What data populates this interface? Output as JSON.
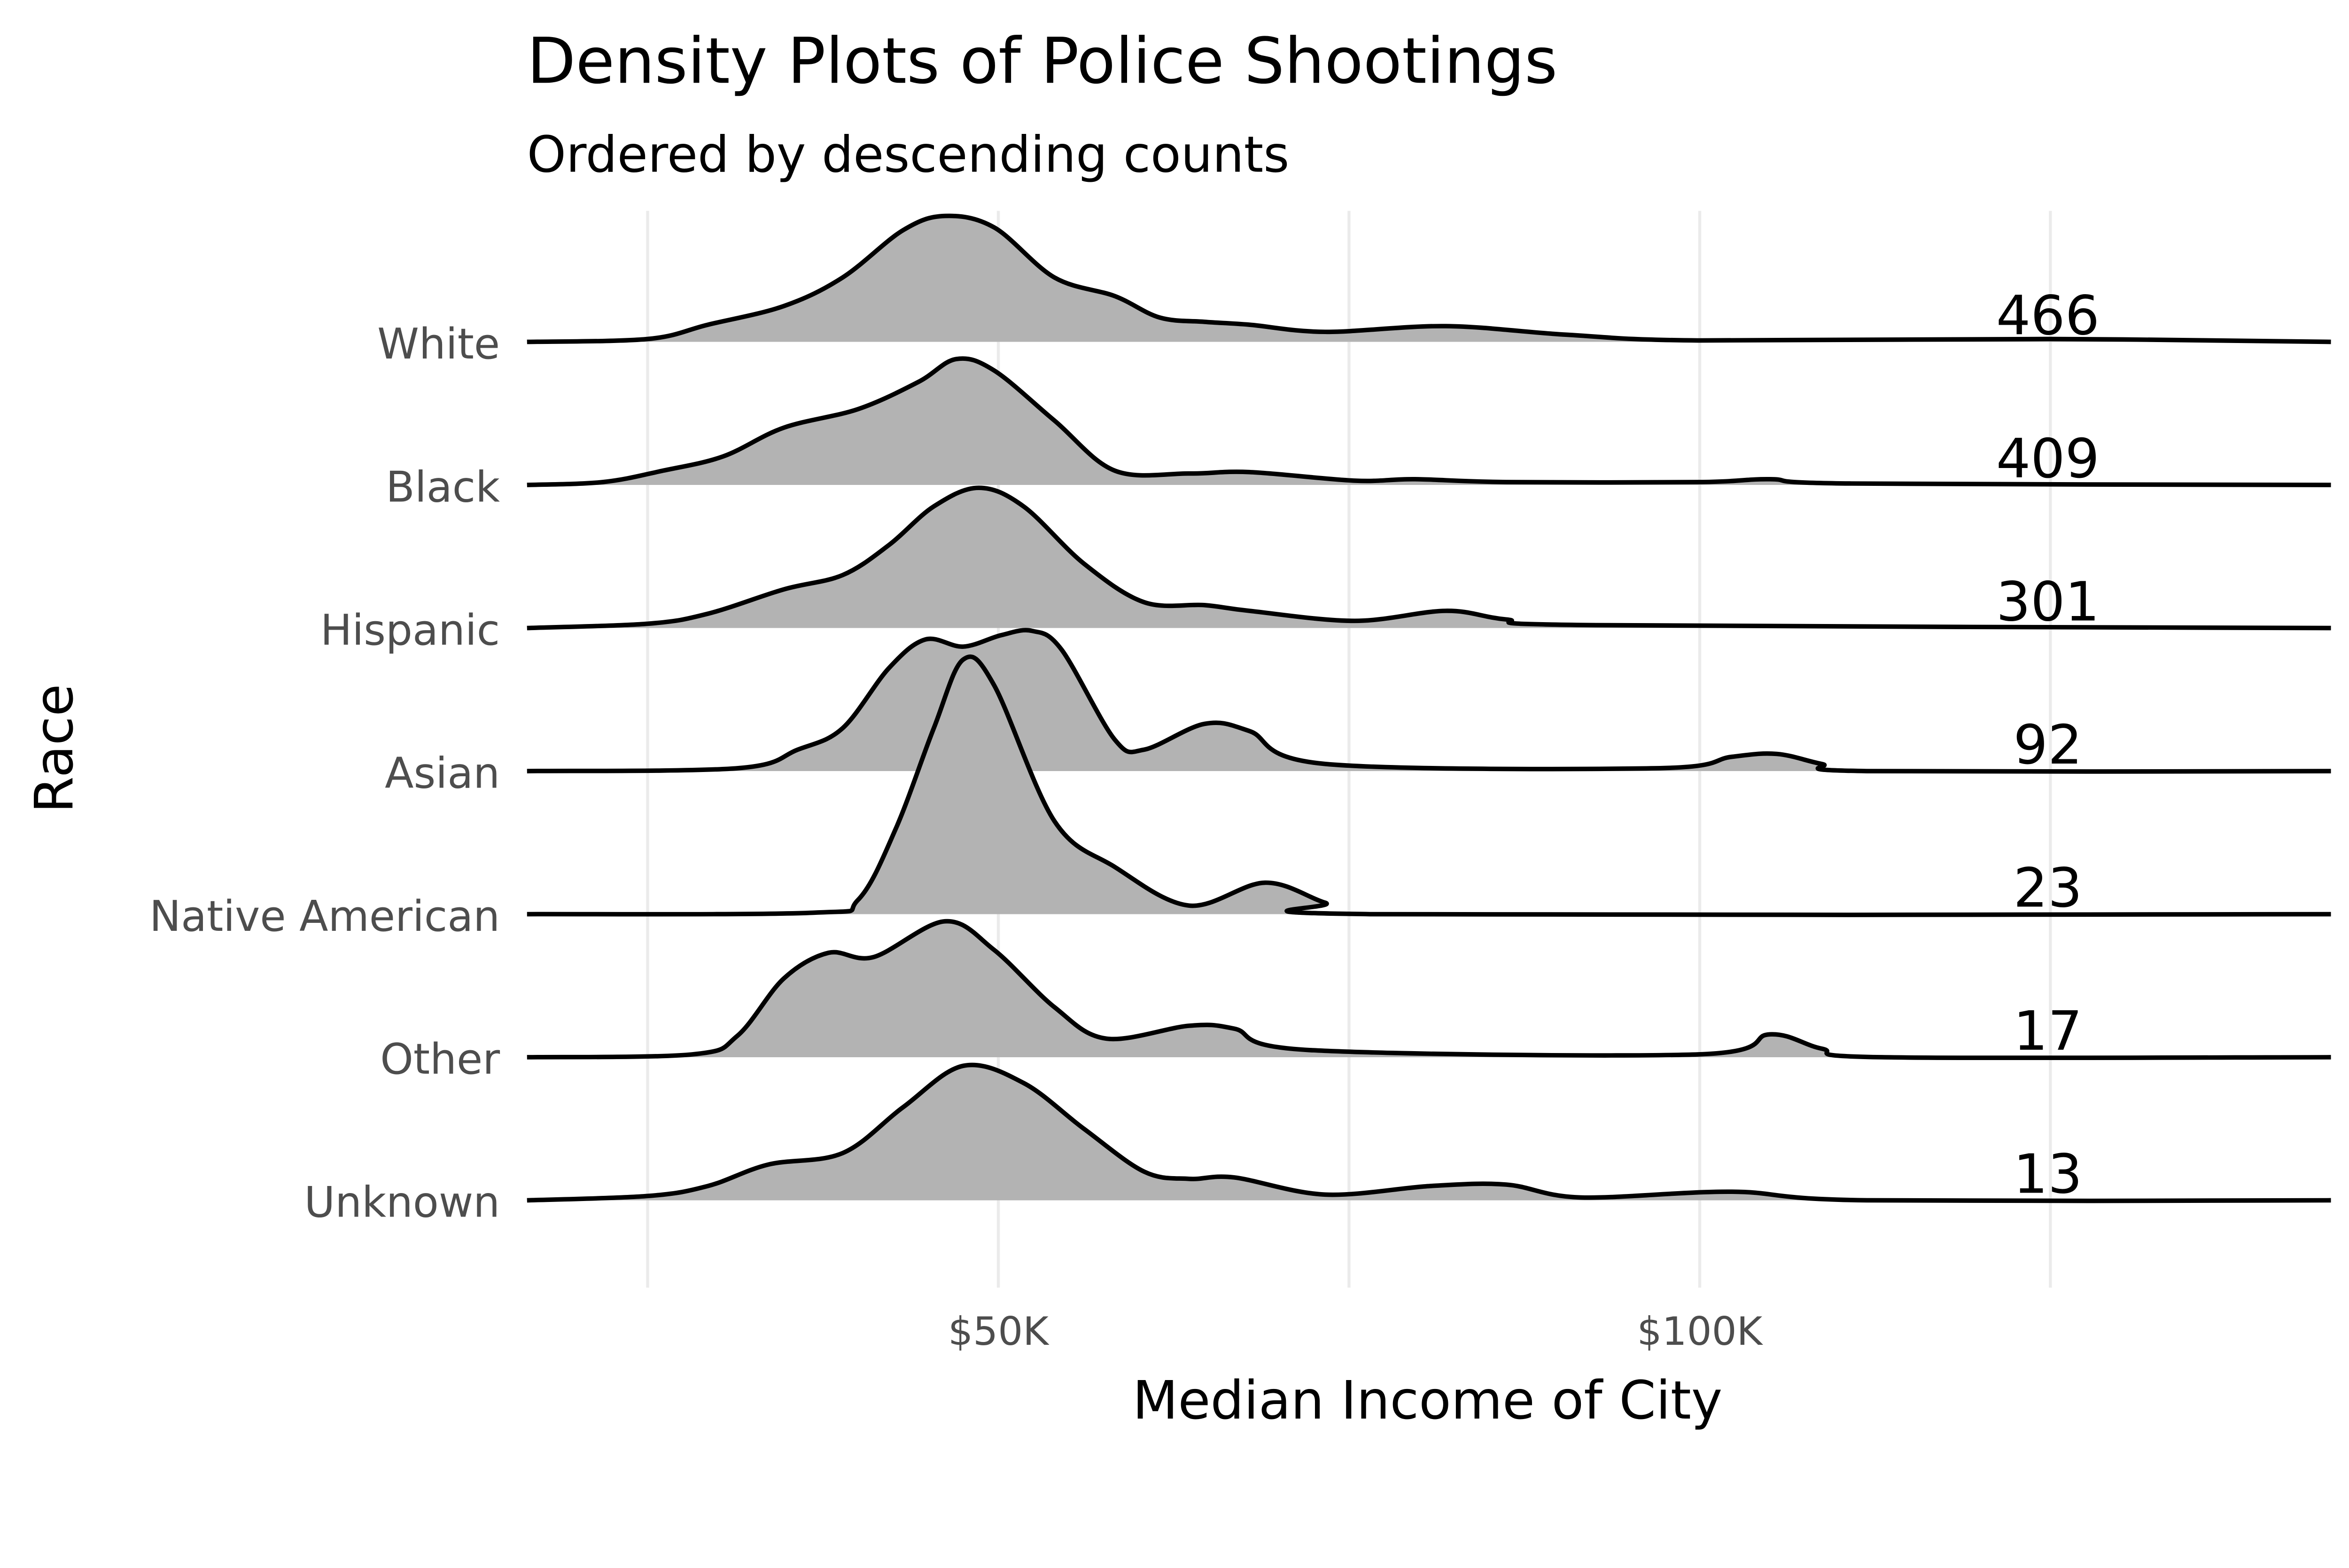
{
  "chart_data": {
    "type": "ridgeline-density",
    "title": "Density Plots of Police Shootings",
    "subtitle": "Ordered by descending counts",
    "xlabel": "Median Income of City",
    "ylabel": "Race",
    "x_unit": "thousands USD",
    "xlim": [
      16.4,
      145
    ],
    "x_ticks": [
      {
        "value": 50,
        "label": "$50K"
      },
      {
        "value": 100,
        "label": "$100K"
      }
    ],
    "x_minor_grid": [
      25,
      75,
      125
    ],
    "fill_color": "#b3b3b3",
    "line_color": "#000000",
    "series": [
      {
        "name": "White",
        "count": "466",
        "points": [
          [
            16.4,
            0
          ],
          [
            25,
            0.02
          ],
          [
            29.3,
            0.12
          ],
          [
            34.7,
            0.25
          ],
          [
            38.9,
            0.45
          ],
          [
            43.2,
            0.78
          ],
          [
            46.2,
            0.88
          ],
          [
            49.7,
            0.8
          ],
          [
            54,
            0.45
          ],
          [
            58.3,
            0.32
          ],
          [
            61.5,
            0.17
          ],
          [
            64.7,
            0.14
          ],
          [
            67.9,
            0.12
          ],
          [
            73.3,
            0.07
          ],
          [
            81.9,
            0.11
          ],
          [
            90.5,
            0.05
          ],
          [
            99.9,
            0.01
          ],
          [
            124.8,
            0.02
          ],
          [
            145,
            0
          ]
        ]
      },
      {
        "name": "Black",
        "count": "409",
        "points": [
          [
            16.4,
            0
          ],
          [
            21.8,
            0.02
          ],
          [
            26.1,
            0.1
          ],
          [
            30.4,
            0.2
          ],
          [
            34.7,
            0.4
          ],
          [
            40,
            0.53
          ],
          [
            44.3,
            0.72
          ],
          [
            47,
            0.88
          ],
          [
            49.7,
            0.8
          ],
          [
            54,
            0.45
          ],
          [
            58.3,
            0.1
          ],
          [
            63.6,
            0.08
          ],
          [
            67.9,
            0.09
          ],
          [
            75.4,
            0.03
          ],
          [
            79.7,
            0.04
          ],
          [
            86.2,
            0.02
          ],
          [
            99.9,
            0.02
          ],
          [
            105,
            0.04
          ],
          [
            110.8,
            0.01
          ],
          [
            145,
            0
          ]
        ]
      },
      {
        "name": "Hispanic",
        "count": "301",
        "points": [
          [
            16.4,
            0
          ],
          [
            25,
            0.03
          ],
          [
            29.3,
            0.1
          ],
          [
            34.7,
            0.27
          ],
          [
            38.9,
            0.37
          ],
          [
            42.2,
            0.58
          ],
          [
            45.4,
            0.85
          ],
          [
            48.6,
            0.98
          ],
          [
            51.8,
            0.85
          ],
          [
            56.1,
            0.45
          ],
          [
            60.4,
            0.18
          ],
          [
            64.7,
            0.16
          ],
          [
            67.9,
            0.12
          ],
          [
            75.4,
            0.05
          ],
          [
            81.9,
            0.12
          ],
          [
            86.2,
            0.06
          ],
          [
            92.6,
            0.02
          ],
          [
            145,
            0
          ]
        ]
      },
      {
        "name": "Asian",
        "count": "92",
        "points": [
          [
            16.4,
            0
          ],
          [
            31.4,
            0.02
          ],
          [
            35.7,
            0.15
          ],
          [
            38.9,
            0.3
          ],
          [
            42.2,
            0.72
          ],
          [
            44.8,
            0.92
          ],
          [
            47.5,
            0.87
          ],
          [
            50.2,
            0.95
          ],
          [
            52.4,
            0.98
          ],
          [
            54.5,
            0.85
          ],
          [
            58.3,
            0.22
          ],
          [
            60.4,
            0.15
          ],
          [
            64.7,
            0.33
          ],
          [
            67.9,
            0.28
          ],
          [
            73.3,
            0.05
          ],
          [
            96.9,
            0.02
          ],
          [
            102.3,
            0.1
          ],
          [
            105.5,
            0.12
          ],
          [
            108.7,
            0.05
          ],
          [
            111.9,
            0
          ],
          [
            145,
            0
          ]
        ]
      },
      {
        "name": "Native American",
        "count": "23",
        "points": [
          [
            16.4,
            0
          ],
          [
            36.8,
            0.01
          ],
          [
            40,
            0.1
          ],
          [
            42.7,
            0.6
          ],
          [
            45.4,
            1.3
          ],
          [
            47.5,
            1.78
          ],
          [
            49.7,
            1.6
          ],
          [
            54,
            0.65
          ],
          [
            58.3,
            0.33
          ],
          [
            63.6,
            0.06
          ],
          [
            69,
            0.22
          ],
          [
            73.3,
            0.08
          ],
          [
            76.5,
            0
          ],
          [
            145,
            0
          ]
        ]
      },
      {
        "name": "Other",
        "count": "17",
        "points": [
          [
            16.4,
            0
          ],
          [
            28.2,
            0.02
          ],
          [
            31.4,
            0.15
          ],
          [
            34.7,
            0.55
          ],
          [
            37.9,
            0.73
          ],
          [
            41.1,
            0.7
          ],
          [
            46.2,
            0.95
          ],
          [
            49.7,
            0.75
          ],
          [
            54,
            0.35
          ],
          [
            57.7,
            0.13
          ],
          [
            63.6,
            0.22
          ],
          [
            66.8,
            0.2
          ],
          [
            72.2,
            0.05
          ],
          [
            99.9,
            0.02
          ],
          [
            105,
            0.16
          ],
          [
            108.7,
            0.06
          ],
          [
            113,
            0
          ],
          [
            145,
            0
          ]
        ]
      },
      {
        "name": "Unknown",
        "count": "13",
        "points": [
          [
            16.4,
            0
          ],
          [
            25,
            0.03
          ],
          [
            29.3,
            0.1
          ],
          [
            33.6,
            0.25
          ],
          [
            38.9,
            0.33
          ],
          [
            43.2,
            0.65
          ],
          [
            47.5,
            0.94
          ],
          [
            51.8,
            0.82
          ],
          [
            56.1,
            0.5
          ],
          [
            60.4,
            0.2
          ],
          [
            63.6,
            0.15
          ],
          [
            66.8,
            0.16
          ],
          [
            73.3,
            0.04
          ],
          [
            80.8,
            0.1
          ],
          [
            86.2,
            0.11
          ],
          [
            91.5,
            0.02
          ],
          [
            102.3,
            0.06
          ],
          [
            111.9,
            0
          ],
          [
            145,
            0
          ]
        ]
      }
    ]
  }
}
